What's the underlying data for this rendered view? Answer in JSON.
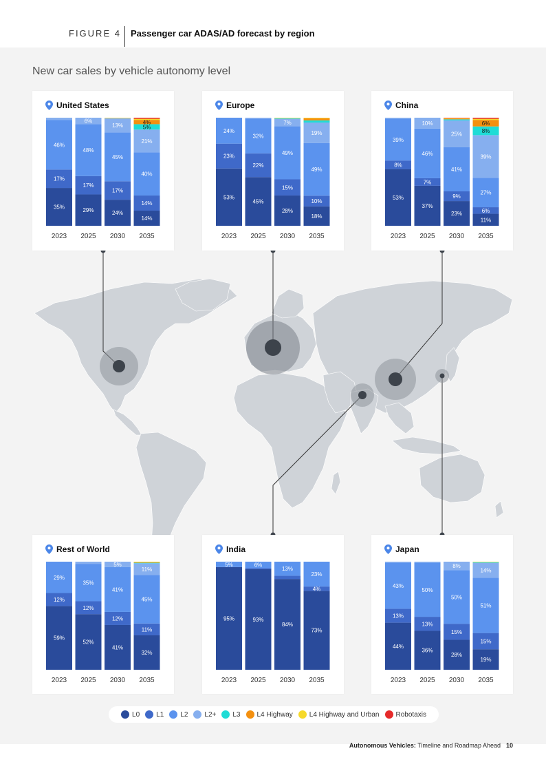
{
  "header": {
    "figure_label": "FIGURE 4",
    "title": "Passenger car ADAS/AD forecast by region"
  },
  "subtitle": "New car sales by vehicle autonomy level",
  "footer": {
    "doc_title_bold": "Autonomous Vehicles:",
    "doc_title_rest": " Timeline and Roadmap Ahead",
    "page": "10"
  },
  "colors": {
    "L0": "#2a4b9b",
    "L1": "#3f69c9",
    "L2": "#5b93ee",
    "L2+": "#86afef",
    "L3": "#1fdcd6",
    "L4 Highway": "#f4900f",
    "L4 Highway and Urban": "#f6d92a",
    "Robotaxis": "#e62b2b"
  },
  "legend": [
    "L0",
    "L1",
    "L2",
    "L2+",
    "L3",
    "L4 Highway",
    "L4 Highway and Urban",
    "Robotaxis"
  ],
  "map": {
    "markers": [
      "United States",
      "Europe",
      "China",
      "India",
      "Japan"
    ]
  },
  "chart_data": [
    {
      "type": "bar",
      "stacked": true,
      "title": "United States",
      "categories": [
        "2023",
        "2025",
        "2030",
        "2035"
      ],
      "series": [
        {
          "name": "L0",
          "values": [
            35,
            29,
            24,
            14
          ]
        },
        {
          "name": "L1",
          "values": [
            17,
            17,
            17,
            14
          ]
        },
        {
          "name": "L2",
          "values": [
            46,
            48,
            45,
            40
          ]
        },
        {
          "name": "L2+",
          "values": [
            2,
            6,
            13,
            21
          ]
        },
        {
          "name": "L3",
          "values": [
            0,
            0,
            0,
            5
          ]
        },
        {
          "name": "L4 Highway",
          "values": [
            0,
            0,
            0,
            4
          ]
        },
        {
          "name": "L4 Highway and Urban",
          "values": [
            0,
            0,
            0.5,
            1
          ]
        },
        {
          "name": "Robotaxis",
          "values": [
            0,
            0,
            0,
            1
          ]
        }
      ]
    },
    {
      "type": "bar",
      "stacked": true,
      "title": "Europe",
      "categories": [
        "2023",
        "2025",
        "2030",
        "2035"
      ],
      "series": [
        {
          "name": "L0",
          "values": [
            53,
            45,
            28,
            18
          ]
        },
        {
          "name": "L1",
          "values": [
            23,
            22,
            15,
            10
          ]
        },
        {
          "name": "L2",
          "values": [
            24,
            32,
            49,
            49
          ]
        },
        {
          "name": "L2+",
          "values": [
            0,
            1,
            7,
            19
          ]
        },
        {
          "name": "L3",
          "values": [
            0,
            0,
            0.5,
            2
          ]
        },
        {
          "name": "L4 Highway",
          "values": [
            0,
            0,
            0,
            2
          ]
        },
        {
          "name": "L4 Highway and Urban",
          "values": [
            0,
            0,
            0.5,
            0.5
          ]
        },
        {
          "name": "Robotaxis",
          "values": [
            0,
            0,
            0,
            0
          ]
        }
      ]
    },
    {
      "type": "bar",
      "stacked": true,
      "title": "China",
      "categories": [
        "2023",
        "2025",
        "2030",
        "2035"
      ],
      "series": [
        {
          "name": "L0",
          "values": [
            53,
            37,
            23,
            11
          ]
        },
        {
          "name": "L1",
          "values": [
            8,
            7,
            9,
            6
          ]
        },
        {
          "name": "L2",
          "values": [
            39,
            46,
            41,
            27
          ]
        },
        {
          "name": "L2+",
          "values": [
            1,
            10,
            25,
            39
          ]
        },
        {
          "name": "L3",
          "values": [
            0,
            0,
            1,
            8
          ]
        },
        {
          "name": "L4 Highway",
          "values": [
            0,
            0,
            0.5,
            6
          ]
        },
        {
          "name": "L4 Highway and Urban",
          "values": [
            0,
            0,
            0.5,
            1
          ]
        },
        {
          "name": "Robotaxis",
          "values": [
            0,
            0,
            0.5,
            1
          ]
        }
      ]
    },
    {
      "type": "bar",
      "stacked": true,
      "title": "Rest of World",
      "categories": [
        "2023",
        "2025",
        "2030",
        "2035"
      ],
      "series": [
        {
          "name": "L0",
          "values": [
            59,
            52,
            41,
            32
          ]
        },
        {
          "name": "L1",
          "values": [
            12,
            12,
            12,
            11
          ]
        },
        {
          "name": "L2",
          "values": [
            29,
            35,
            41,
            45
          ]
        },
        {
          "name": "L2+",
          "values": [
            0,
            2,
            5,
            11
          ]
        },
        {
          "name": "L3",
          "values": [
            0,
            0,
            0,
            0.5
          ]
        },
        {
          "name": "L4 Highway",
          "values": [
            0,
            0,
            0,
            0.5
          ]
        },
        {
          "name": "L4 Highway and Urban",
          "values": [
            0,
            0,
            0,
            0.5
          ]
        },
        {
          "name": "Robotaxis",
          "values": [
            0,
            0,
            0,
            0
          ]
        }
      ]
    },
    {
      "type": "bar",
      "stacked": true,
      "title": "India",
      "categories": [
        "2023",
        "2025",
        "2030",
        "2035"
      ],
      "series": [
        {
          "name": "L0",
          "values": [
            95,
            93,
            84,
            73
          ]
        },
        {
          "name": "L1",
          "values": [
            0,
            1,
            3,
            4
          ]
        },
        {
          "name": "L2",
          "values": [
            5,
            6,
            13,
            23
          ]
        },
        {
          "name": "L2+",
          "values": [
            0,
            0,
            0,
            0
          ]
        },
        {
          "name": "L3",
          "values": [
            0,
            0,
            0,
            0
          ]
        },
        {
          "name": "L4 Highway",
          "values": [
            0,
            0,
            0,
            0
          ]
        },
        {
          "name": "L4 Highway and Urban",
          "values": [
            0,
            0,
            0,
            0
          ]
        },
        {
          "name": "Robotaxis",
          "values": [
            0,
            0,
            0,
            0
          ]
        }
      ]
    },
    {
      "type": "bar",
      "stacked": true,
      "title": "Japan",
      "categories": [
        "2023",
        "2025",
        "2030",
        "2035"
      ],
      "series": [
        {
          "name": "L0",
          "values": [
            44,
            36,
            28,
            19
          ]
        },
        {
          "name": "L1",
          "values": [
            13,
            13,
            15,
            15
          ]
        },
        {
          "name": "L2",
          "values": [
            43,
            50,
            50,
            51
          ]
        },
        {
          "name": "L2+",
          "values": [
            1,
            1,
            8,
            14
          ]
        },
        {
          "name": "L3",
          "values": [
            0,
            0,
            0,
            0.5
          ]
        },
        {
          "name": "L4 Highway",
          "values": [
            0,
            0,
            0,
            0
          ]
        },
        {
          "name": "L4 Highway and Urban",
          "values": [
            0,
            0,
            0,
            0.5
          ]
        },
        {
          "name": "Robotaxis",
          "values": [
            0,
            0,
            0,
            0
          ]
        }
      ]
    }
  ]
}
